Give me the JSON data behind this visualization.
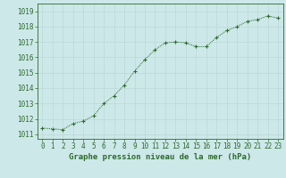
{
  "x": [
    0,
    1,
    2,
    3,
    4,
    5,
    6,
    7,
    8,
    9,
    10,
    11,
    12,
    13,
    14,
    15,
    16,
    17,
    18,
    19,
    20,
    21,
    22,
    23
  ],
  "y": [
    1011.4,
    1011.35,
    1011.3,
    1011.7,
    1011.85,
    1012.2,
    1013.0,
    1013.5,
    1014.2,
    1015.1,
    1015.85,
    1016.5,
    1016.95,
    1017.0,
    1016.95,
    1016.7,
    1016.7,
    1017.3,
    1017.75,
    1018.0,
    1018.35,
    1018.45,
    1018.7,
    1018.55
  ],
  "line_color": "#2d6a2d",
  "marker": "+",
  "bg_color": "#cce8e8",
  "grid_color": "#b8d4d4",
  "xlabel": "Graphe pression niveau de la mer (hPa)",
  "xlabel_fontsize": 6.5,
  "ylabel_ticks": [
    1011,
    1012,
    1013,
    1014,
    1015,
    1016,
    1017,
    1018,
    1019
  ],
  "xlim": [
    -0.5,
    23.5
  ],
  "ylim": [
    1010.7,
    1019.5
  ],
  "tick_fontsize": 5.5,
  "line_width": 0.7,
  "marker_size": 2.5
}
